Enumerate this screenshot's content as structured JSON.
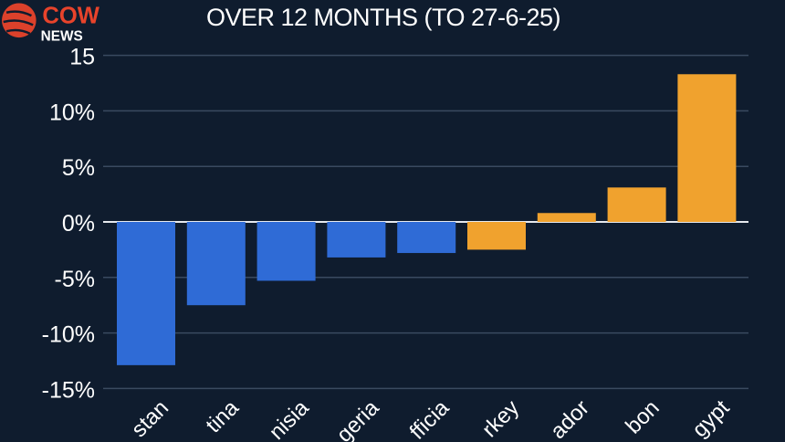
{
  "chart_data": {
    "type": "bar",
    "title": "OVER 12 MONTHS (TO 27-6-25)",
    "categories": [
      "stan",
      "tina",
      "nisia",
      "geria",
      "fficia",
      "rkey",
      "ador",
      "bon",
      "gypt"
    ],
    "values": [
      -12.9,
      -7.5,
      -5.3,
      -3.2,
      -2.8,
      -2.5,
      0.8,
      3.1,
      13.3
    ],
    "colors": [
      "#2f6bd6",
      "#2f6bd6",
      "#2f6bd6",
      "#2f6bd6",
      "#2f6bd6",
      "#f0a22e",
      "#f0a22e",
      "#f0a22e",
      "#f0a22e"
    ],
    "yticks": [
      15,
      10,
      5,
      0,
      -5,
      -10,
      -15
    ],
    "ytick_labels": [
      "15",
      "10%",
      "5%",
      "0%",
      "-5%",
      "-10%",
      "-15%"
    ],
    "ylim": [
      -15,
      15
    ],
    "grid": true,
    "xlabel": "",
    "ylabel": ""
  },
  "logo": {
    "text": "COW",
    "subtext": "NEWS"
  }
}
